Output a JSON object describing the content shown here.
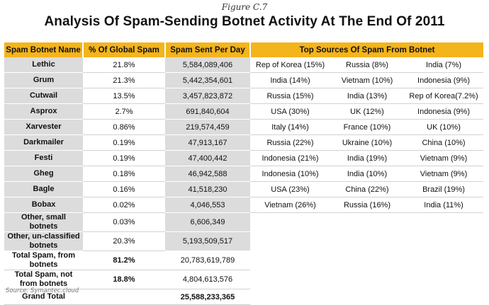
{
  "figure_label": "Figure C.7",
  "title": "Analysis Of Spam-Sending Botnet Activity At The End Of 2011",
  "headers": {
    "name": "Spam Botnet Name",
    "pct": "% Of Global Spam",
    "sent": "Spam Sent Per Day",
    "sources": "Top Sources Of Spam From Botnet"
  },
  "rows": [
    {
      "name": "Lethic",
      "pct": "21.8%",
      "sent": "5,584,089,406",
      "s1": "Rep of Korea (15%)",
      "s2": "Russia (8%)",
      "s3": "India (7%)"
    },
    {
      "name": "Grum",
      "pct": "21.3%",
      "sent": "5,442,354,601",
      "s1": "India (14%)",
      "s2": "Vietnam (10%)",
      "s3": "Indonesia (9%)"
    },
    {
      "name": "Cutwail",
      "pct": "13.5%",
      "sent": "3,457,823,872",
      "s1": "Russia (15%)",
      "s2": "India (13%)",
      "s3": "Rep of Korea(7.2%)"
    },
    {
      "name": "Asprox",
      "pct": "2.7%",
      "sent": "691,840,604",
      "s1": "USA (30%)",
      "s2": "UK (12%)",
      "s3": "Indonesia (9%)"
    },
    {
      "name": "Xarvester",
      "pct": "0.86%",
      "sent": "219,574,459",
      "s1": "Italy (14%)",
      "s2": "France (10%)",
      "s3": "UK (10%)"
    },
    {
      "name": "Darkmailer",
      "pct": "0.19%",
      "sent": "47,913,167",
      "s1": "Russia (22%)",
      "s2": "Ukraine (10%)",
      "s3": "China (10%)"
    },
    {
      "name": "Festi",
      "pct": "0.19%",
      "sent": "47,400,442",
      "s1": "Indonesia (21%)",
      "s2": "India (19%)",
      "s3": "Vietnam (9%)"
    },
    {
      "name": "Gheg",
      "pct": "0.18%",
      "sent": "46,942,588",
      "s1": "Indonesia (10%)",
      "s2": "India (10%)",
      "s3": "Vietnam (9%)"
    },
    {
      "name": "Bagle",
      "pct": "0.16%",
      "sent": "41,518,230",
      "s1": "USA (23%)",
      "s2": "China (22%)",
      "s3": "Brazil (19%)"
    },
    {
      "name": "Bobax",
      "pct": "0.02%",
      "sent": "4,046,553",
      "s1": "Vietnam (26%)",
      "s2": "Russia (16%)",
      "s3": "India (11%)"
    },
    {
      "name": "Other, small botnets",
      "pct": "0.03%",
      "sent": "6,606,349"
    },
    {
      "name": "Other, un-classified botnets",
      "pct": "20.3%",
      "sent": "5,193,509,517"
    }
  ],
  "totals": [
    {
      "name": "Total Spam, from botnets",
      "pct": "81.2%",
      "sent": "20,783,619,789"
    },
    {
      "name": "Total Spam, not from botnets",
      "pct": "18.8%",
      "sent": "4,804,613,576"
    },
    {
      "name": "Grand Total",
      "pct": "",
      "sent": "25,588,233,365"
    }
  ],
  "source": "Source: Symantec.cloud",
  "colors": {
    "header": "#f4b41c",
    "shaded": "#dcdcdc"
  }
}
